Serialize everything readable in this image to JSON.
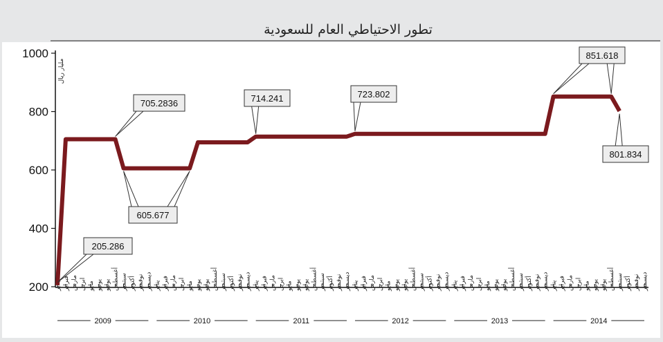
{
  "chart_data": {
    "type": "line",
    "title": "تطور الاحتياطي العام للسعودية",
    "ylabel": "مليار ريال",
    "ylim": [
      200,
      1000
    ],
    "yticks": [
      "200",
      "400",
      "600",
      "800",
      "1000"
    ],
    "months": [
      "يناير",
      "فبراير",
      "مارس",
      "ابريل",
      "مايو",
      "يونيو",
      "يوليو",
      "أغسطس",
      "سبتمبر",
      "أكتوبر",
      "نوفمبر",
      "ديسمبر"
    ],
    "years": [
      "2009",
      "2010",
      "2011",
      "2012",
      "2013",
      "2014"
    ],
    "series": [
      {
        "color": "#7b1a1e",
        "points": [
          {
            "x": "2009-01",
            "y": 205.286
          },
          {
            "x": "2009-02",
            "y": 705.2836
          },
          {
            "x": "2009-08",
            "y": 705.2836
          },
          {
            "x": "2009-09",
            "y": 605.677
          },
          {
            "x": "2010-05",
            "y": 605.677
          },
          {
            "x": "2010-06",
            "y": 694.6
          },
          {
            "x": "2010-12",
            "y": 694.6
          },
          {
            "x": "2011-01",
            "y": 714.241
          },
          {
            "x": "2011-12",
            "y": 714.241
          },
          {
            "x": "2012-01",
            "y": 723.802
          },
          {
            "x": "2013-12",
            "y": 723.802
          },
          {
            "x": "2014-01",
            "y": 851.618
          },
          {
            "x": "2014-08",
            "y": 851.618
          },
          {
            "x": "2014-09",
            "y": 801.834
          }
        ]
      }
    ],
    "annotations": [
      {
        "text": "205.286",
        "targets": [
          "2009-01"
        ]
      },
      {
        "text": "705.2836",
        "targets": [
          "2009-08"
        ]
      },
      {
        "text": "605.677",
        "targets": [
          "2009-09",
          "2010-05"
        ]
      },
      {
        "text": "714.241",
        "targets": [
          "2011-01"
        ]
      },
      {
        "text": "723.802",
        "targets": [
          "2012-01"
        ]
      },
      {
        "text": "851.618",
        "targets": [
          "2014-01",
          "2014-08"
        ]
      },
      {
        "text": "801.834",
        "targets": [
          "2014-09"
        ]
      }
    ],
    "grid": false
  }
}
